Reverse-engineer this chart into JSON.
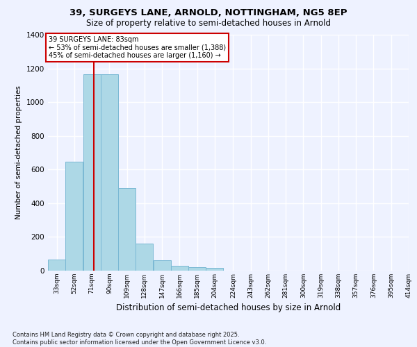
{
  "title": "39, SURGEYS LANE, ARNOLD, NOTTINGHAM, NG5 8EP",
  "subtitle": "Size of property relative to semi-detached houses in Arnold",
  "xlabel": "Distribution of semi-detached houses by size in Arnold",
  "ylabel": "Number of semi-detached properties",
  "bin_labels": [
    "33sqm",
    "52sqm",
    "71sqm",
    "90sqm",
    "109sqm",
    "128sqm",
    "147sqm",
    "166sqm",
    "185sqm",
    "204sqm",
    "224sqm",
    "243sqm",
    "262sqm",
    "281sqm",
    "300sqm",
    "319sqm",
    "338sqm",
    "357sqm",
    "376sqm",
    "395sqm",
    "414sqm"
  ],
  "bin_edges": [
    33,
    52,
    71,
    90,
    109,
    128,
    147,
    166,
    185,
    204,
    224,
    243,
    262,
    281,
    300,
    319,
    338,
    357,
    376,
    395,
    414
  ],
  "bar_heights": [
    65,
    645,
    1165,
    1165,
    490,
    160,
    60,
    30,
    20,
    15,
    0,
    0,
    0,
    0,
    0,
    0,
    0,
    0,
    0,
    0
  ],
  "bar_color": "#add8e6",
  "bar_edge_color": "#7ab8d4",
  "property_size": 83,
  "property_label": "39 SURGEYS LANE: 83sqm",
  "pct_smaller": 53,
  "n_smaller": 1388,
  "pct_larger": 45,
  "n_larger": 1160,
  "vline_color": "#cc0000",
  "annotation_box_color": "#cc0000",
  "ylim": [
    0,
    1400
  ],
  "bg_color": "#eef2ff",
  "grid_color": "#ffffff",
  "footer_line1": "Contains HM Land Registry data © Crown copyright and database right 2025.",
  "footer_line2": "Contains public sector information licensed under the Open Government Licence v3.0."
}
